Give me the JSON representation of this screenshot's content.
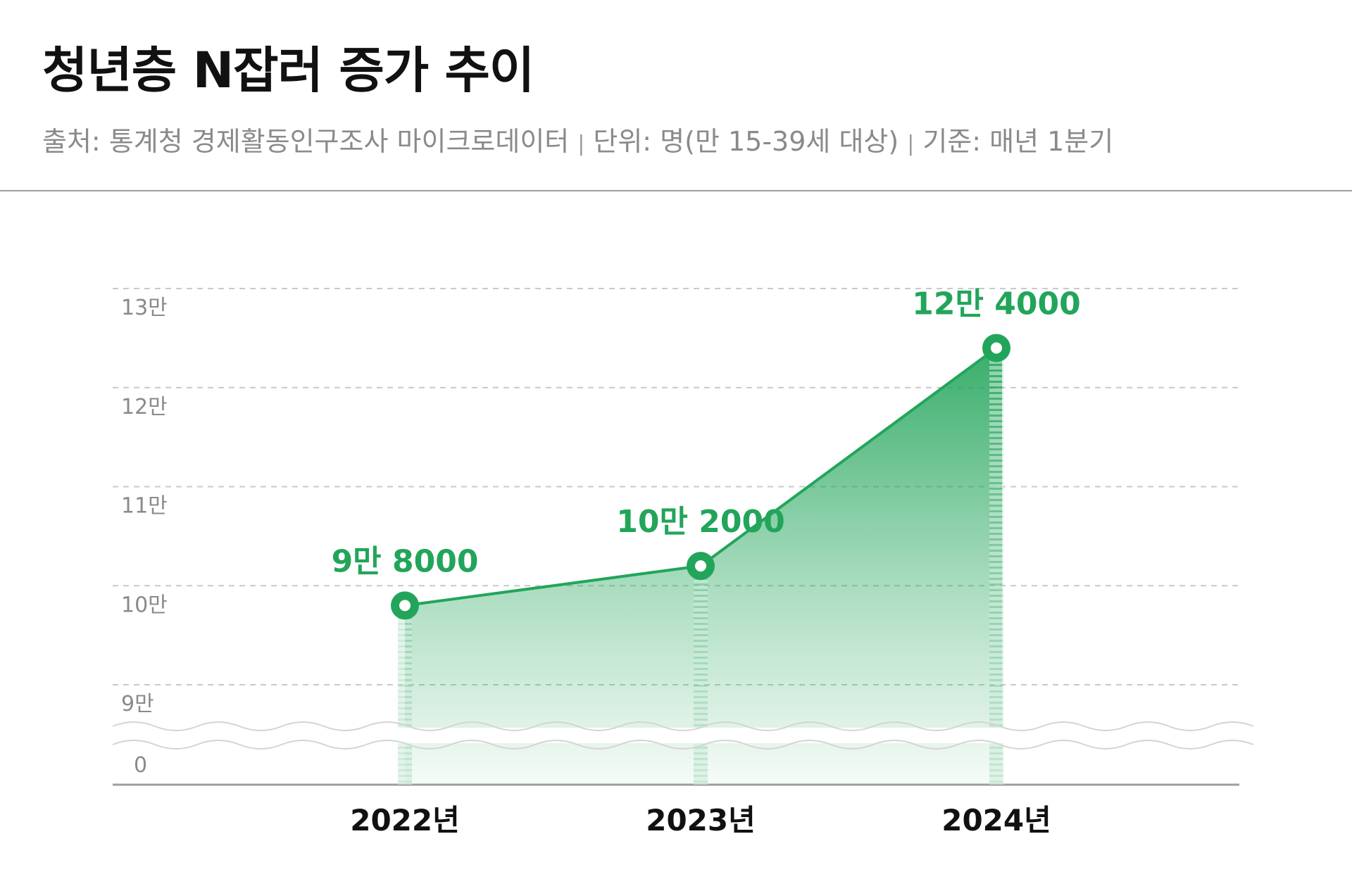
{
  "header": {
    "title": "청년층 N잡러 증가 추이",
    "source": "출처: 통계청 경제활동인구조사 마이크로데이터",
    "unit": "단위: 명(만 15-39세 대상)",
    "basis": "기준: 매년 1분기"
  },
  "colors": {
    "accent": "#22a55a",
    "gridline": "#c9c9c9",
    "axis_text": "#8a8a8a"
  },
  "chart_data": {
    "type": "area",
    "title": "청년층 N잡러 증가 추이",
    "categories": [
      "2022년",
      "2023년",
      "2024년"
    ],
    "series": [
      {
        "values": [
          98000,
          102000,
          124000
        ],
        "labels": [
          "9만 8000",
          "10만 2000",
          "12만 4000"
        ]
      }
    ],
    "y_ticks": [
      {
        "value": 0,
        "label": "0"
      },
      {
        "value": 90000,
        "label": "9만"
      },
      {
        "value": 100000,
        "label": "10만"
      },
      {
        "value": 110000,
        "label": "11만"
      },
      {
        "value": 120000,
        "label": "12만"
      },
      {
        "value": 130000,
        "label": "13만"
      }
    ],
    "ylim": [
      90000,
      130000
    ],
    "axis_break": true,
    "grid": true,
    "xlabel": "",
    "ylabel": ""
  }
}
